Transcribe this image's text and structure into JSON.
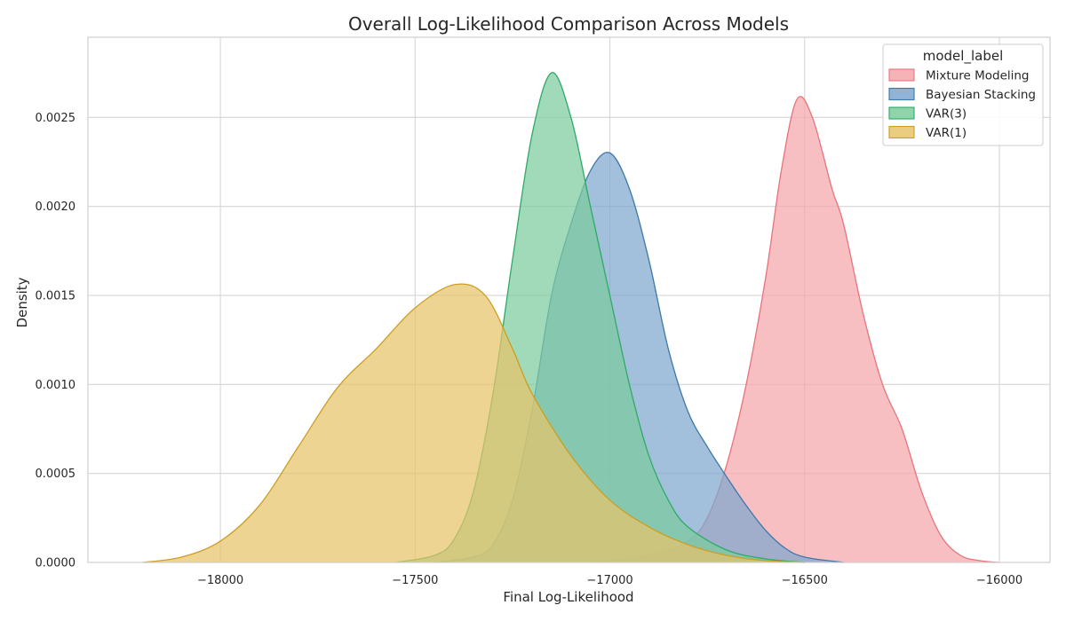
{
  "chart_data": {
    "type": "area",
    "title": "Overall Log-Likelihood Comparison Across Models",
    "xlabel": "Final Log-Likelihood",
    "ylabel": "Density",
    "xlim": [
      -18340,
      -15870
    ],
    "ylim": [
      0,
      0.00295
    ],
    "x_ticks": [
      -18000,
      -17500,
      -17000,
      -16500,
      -16000
    ],
    "x_tick_labels": [
      "−18000",
      "−17500",
      "−17000",
      "−16500",
      "−16000"
    ],
    "y_ticks": [
      0,
      0.0005,
      0.001,
      0.0015,
      0.002,
      0.0025
    ],
    "y_tick_labels": [
      "0.0000",
      "0.0005",
      "0.0010",
      "0.0015",
      "0.0020",
      "0.0025"
    ],
    "grid": true,
    "legend": {
      "title": "model_label",
      "placement": "top-right"
    },
    "series": [
      {
        "name": "Mixture Modeling",
        "fill": "#f4a6aa",
        "stroke": "#e8737a",
        "points": [
          [
            -17050,
            0
          ],
          [
            -16900,
            4e-05
          ],
          [
            -16800,
            0.00012
          ],
          [
            -16750,
            0.00025
          ],
          [
            -16700,
            0.00055
          ],
          [
            -16650,
            0.001
          ],
          [
            -16600,
            0.0016
          ],
          [
            -16560,
            0.0022
          ],
          [
            -16520,
            0.0026
          ],
          [
            -16480,
            0.0025
          ],
          [
            -16430,
            0.0021
          ],
          [
            -16400,
            0.0019
          ],
          [
            -16350,
            0.0014
          ],
          [
            -16300,
            0.001
          ],
          [
            -16250,
            0.00075
          ],
          [
            -16200,
            0.0004
          ],
          [
            -16150,
            0.00015
          ],
          [
            -16100,
            4e-05
          ],
          [
            -16050,
            1e-05
          ],
          [
            -16000,
            0
          ]
        ]
      },
      {
        "name": "Bayesian Stacking",
        "fill": "#7ea6ce",
        "stroke": "#3d78aa",
        "points": [
          [
            -17450,
            0
          ],
          [
            -17350,
            3e-05
          ],
          [
            -17300,
            0.0001
          ],
          [
            -17250,
            0.00035
          ],
          [
            -17200,
            0.00085
          ],
          [
            -17150,
            0.0015
          ],
          [
            -17100,
            0.0019
          ],
          [
            -17050,
            0.0022
          ],
          [
            -17000,
            0.0023
          ],
          [
            -16950,
            0.0021
          ],
          [
            -16900,
            0.0017
          ],
          [
            -16850,
            0.0012
          ],
          [
            -16800,
            0.00085
          ],
          [
            -16750,
            0.00065
          ],
          [
            -16700,
            0.00048
          ],
          [
            -16650,
            0.00032
          ],
          [
            -16600,
            0.00018
          ],
          [
            -16550,
            8e-05
          ],
          [
            -16500,
            3e-05
          ],
          [
            -16400,
            0
          ]
        ]
      },
      {
        "name": "VAR(3)",
        "fill": "#7ccc9e",
        "stroke": "#2faa66",
        "points": [
          [
            -17550,
            0
          ],
          [
            -17450,
            4e-05
          ],
          [
            -17400,
            0.00013
          ],
          [
            -17350,
            0.0004
          ],
          [
            -17300,
            0.00095
          ],
          [
            -17250,
            0.0017
          ],
          [
            -17200,
            0.0024
          ],
          [
            -17150,
            0.00275
          ],
          [
            -17100,
            0.0025
          ],
          [
            -17050,
            0.002
          ],
          [
            -17000,
            0.0015
          ],
          [
            -16950,
            0.001
          ],
          [
            -16900,
            0.0006
          ],
          [
            -16850,
            0.00035
          ],
          [
            -16800,
            0.0002
          ],
          [
            -16700,
            7e-05
          ],
          [
            -16600,
            2e-05
          ],
          [
            -16500,
            0
          ]
        ]
      },
      {
        "name": "VAR(1)",
        "fill": "#e6c46a",
        "stroke": "#cc9e22",
        "points": [
          [
            -18200,
            0
          ],
          [
            -18100,
            3e-05
          ],
          [
            -18000,
            0.00012
          ],
          [
            -17900,
            0.00032
          ],
          [
            -17800,
            0.00065
          ],
          [
            -17700,
            0.00098
          ],
          [
            -17600,
            0.0012
          ],
          [
            -17500,
            0.00143
          ],
          [
            -17400,
            0.00156
          ],
          [
            -17320,
            0.0015
          ],
          [
            -17250,
            0.0012
          ],
          [
            -17200,
            0.00095
          ],
          [
            -17100,
            0.0006
          ],
          [
            -17000,
            0.00035
          ],
          [
            -16900,
            0.0002
          ],
          [
            -16800,
            0.0001
          ],
          [
            -16700,
            4e-05
          ],
          [
            -16600,
            1e-05
          ],
          [
            -16500,
            0
          ]
        ]
      }
    ]
  }
}
